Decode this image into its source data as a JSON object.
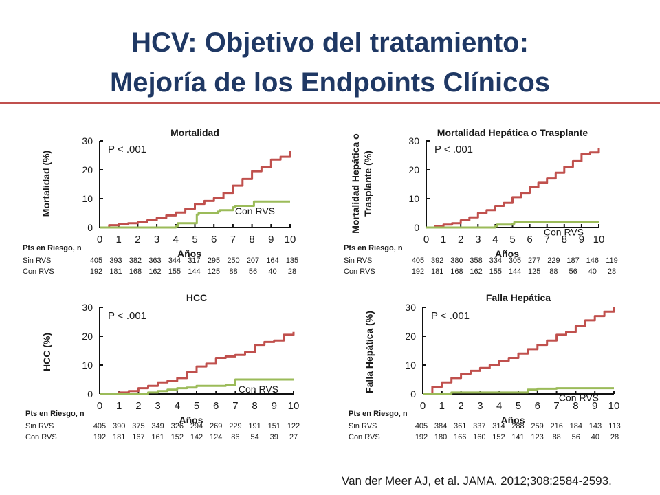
{
  "slide": {
    "title_line1": "HCV: Objetivo del tratamiento:",
    "title_line2": "Mejoría de los Endpoints Clínicos",
    "citation": "Van der Meer AJ, et al. JAMA. 2012;308:2584-2593.",
    "accent_color": "#c0504d",
    "title_color": "#1f3864"
  },
  "chart_data": [
    {
      "type": "line",
      "title": "Mortalidad",
      "ylabel": "Mortalidad (%)",
      "xlabel": "Años",
      "pvalue": "P < .001",
      "ylim": [
        0,
        30
      ],
      "xlim": [
        0,
        10
      ],
      "yticks": [
        0,
        10,
        20,
        30
      ],
      "xticks": [
        0,
        1,
        2,
        3,
        4,
        5,
        6,
        7,
        8,
        9,
        10
      ],
      "series": [
        {
          "key": "sin",
          "color": "#c0504d",
          "x": [
            0,
            0.5,
            1,
            1.5,
            2,
            2.5,
            3,
            3.5,
            4,
            4.5,
            5,
            5.5,
            6,
            6.5,
            7,
            7.5,
            8,
            8.5,
            9,
            9.5,
            10
          ],
          "y": [
            0,
            0.8,
            1.3,
            1.5,
            1.8,
            2.5,
            3.3,
            4.2,
            5.2,
            6.5,
            8.2,
            9.2,
            10.2,
            12,
            14.5,
            16.8,
            19.5,
            21,
            23.5,
            24.5,
            26.5
          ]
        },
        {
          "name": "Con RVS",
          "key": "con",
          "color": "#9bbb59",
          "x": [
            0,
            3,
            4,
            4.1,
            5.1,
            5.2,
            6.2,
            6.3,
            7,
            7.1,
            8,
            8.1,
            10
          ],
          "y": [
            0,
            0,
            0.5,
            1.5,
            4.5,
            5,
            5.5,
            6,
            7,
            7.5,
            7.5,
            9,
            9
          ]
        }
      ],
      "risk": {
        "header": "Pts en Riesgo, n",
        "rows": [
          {
            "label": "Sin RVS",
            "values": [
              405,
              393,
              382,
              363,
              344,
              317,
              295,
              250,
              207,
              164,
              135
            ]
          },
          {
            "label": "Con RVS",
            "values": [
              192,
              181,
              168,
              162,
              155,
              144,
              125,
              88,
              56,
              40,
              28
            ]
          }
        ]
      }
    },
    {
      "type": "line",
      "title": "Mortalidad Hepática o Trasplante",
      "ylabel": "Mortalidad Hepática o Trasplante (%)",
      "ylabel_lines": [
        "Mortalidad Hepática o",
        "Trasplante (%)"
      ],
      "xlabel": "Años",
      "pvalue": "P < .001",
      "ylim": [
        0,
        30
      ],
      "xlim": [
        0,
        10
      ],
      "yticks": [
        0,
        10,
        20,
        30
      ],
      "xticks": [
        0,
        1,
        2,
        3,
        4,
        5,
        6,
        7,
        8,
        9,
        10
      ],
      "series": [
        {
          "key": "sin",
          "color": "#c0504d",
          "x": [
            0,
            0.5,
            1,
            1.5,
            2,
            2.5,
            3,
            3.5,
            4,
            4.5,
            5,
            5.5,
            6,
            6.5,
            7,
            7.5,
            8,
            8.5,
            9,
            9.5,
            10
          ],
          "y": [
            0,
            0.5,
            1,
            1.5,
            2.5,
            3.5,
            5,
            6,
            7.5,
            8.5,
            10.5,
            12,
            14,
            15.5,
            17,
            19,
            21,
            23,
            25.5,
            26,
            27.5
          ]
        },
        {
          "name": "Con RVS",
          "key": "con",
          "color": "#9bbb59",
          "x": [
            0,
            3,
            4,
            4.1,
            5,
            5.1,
            10
          ],
          "y": [
            0,
            0,
            0.5,
            1,
            1.3,
            1.8,
            1.8
          ]
        }
      ],
      "risk": {
        "header": "Pts en Riesgo, n",
        "rows": [
          {
            "label": "Sin RVS",
            "values": [
              405,
              392,
              380,
              358,
              334,
              305,
              277,
              229,
              187,
              146,
              119
            ]
          },
          {
            "label": "Con RVS",
            "values": [
              192,
              181,
              168,
              162,
              155,
              144,
              125,
              88,
              56,
              40,
              28
            ]
          }
        ]
      }
    },
    {
      "type": "line",
      "title": "HCC",
      "ylabel": "HCC (%)",
      "xlabel": "Años",
      "pvalue": "P < .001",
      "ylim": [
        0,
        30
      ],
      "xlim": [
        0,
        10
      ],
      "yticks": [
        0,
        10,
        20,
        30
      ],
      "xticks": [
        0,
        1,
        2,
        3,
        4,
        5,
        6,
        7,
        8,
        9,
        10
      ],
      "series": [
        {
          "key": "sin",
          "color": "#c0504d",
          "x": [
            0,
            0.5,
            1,
            1.5,
            2,
            2.5,
            3,
            3.5,
            4,
            4.5,
            5,
            5.5,
            6,
            6.5,
            7,
            7.5,
            8,
            8.5,
            9,
            9.5,
            10
          ],
          "y": [
            0,
            0,
            0.5,
            1,
            2,
            2.8,
            4,
            4.5,
            5.5,
            7.5,
            9.5,
            10.5,
            12.5,
            13,
            13.5,
            14.5,
            17,
            18,
            18.5,
            20.5,
            21.5
          ]
        },
        {
          "name": "Con RVS",
          "key": "con",
          "color": "#9bbb59",
          "x": [
            0,
            1.5,
            2.5,
            3,
            3.5,
            4,
            4.5,
            5,
            6.5,
            7,
            10
          ],
          "y": [
            0,
            0,
            0.5,
            1,
            1.5,
            2,
            2.2,
            2.8,
            3,
            5,
            5
          ]
        }
      ],
      "risk": {
        "header": "Pts en Riesgo, n",
        "rows": [
          {
            "label": "Sin RVS",
            "values": [
              405,
              390,
              375,
              349,
              326,
              294,
              269,
              229,
              191,
              151,
              122
            ]
          },
          {
            "label": "Con RVS",
            "values": [
              192,
              181,
              167,
              161,
              152,
              142,
              124,
              86,
              54,
              39,
              27
            ]
          }
        ]
      }
    },
    {
      "type": "line",
      "title": "Falla Hepática",
      "ylabel": "Falla Hepática (%)",
      "xlabel": "Años",
      "pvalue": "P < .001",
      "ylim": [
        0,
        30
      ],
      "xlim": [
        0,
        10
      ],
      "yticks": [
        0,
        10,
        20,
        30
      ],
      "xticks": [
        0,
        1,
        2,
        3,
        4,
        5,
        6,
        7,
        8,
        9,
        10
      ],
      "series": [
        {
          "key": "sin",
          "color": "#c0504d",
          "x": [
            0,
            0.5,
            1,
            1.5,
            2,
            2.5,
            3,
            3.5,
            4,
            4.5,
            5,
            5.5,
            6,
            6.5,
            7,
            7.5,
            8,
            8.5,
            9,
            9.5,
            10
          ],
          "y": [
            0,
            2.5,
            4,
            5.5,
            7,
            8,
            9,
            10,
            11.5,
            12.5,
            14,
            15.5,
            17,
            18.5,
            20.5,
            21.5,
            23.5,
            25.5,
            27,
            28.5,
            30
          ]
        },
        {
          "name": "Con RVS",
          "key": "con",
          "color": "#9bbb59",
          "x": [
            0,
            1,
            1.5,
            5,
            5.5,
            6,
            7,
            10
          ],
          "y": [
            0,
            0,
            0.5,
            0.5,
            1.5,
            1.8,
            2,
            2
          ]
        }
      ],
      "risk": {
        "header": "Pts en Riesgo, n",
        "rows": [
          {
            "label": "Sin RVS",
            "values": [
              405,
              384,
              361,
              337,
              314,
              288,
              259,
              216,
              184,
              143,
              113
            ]
          },
          {
            "label": "Con RVS",
            "values": [
              192,
              180,
              166,
              160,
              152,
              141,
              123,
              88,
              56,
              40,
              28
            ]
          }
        ]
      }
    }
  ]
}
